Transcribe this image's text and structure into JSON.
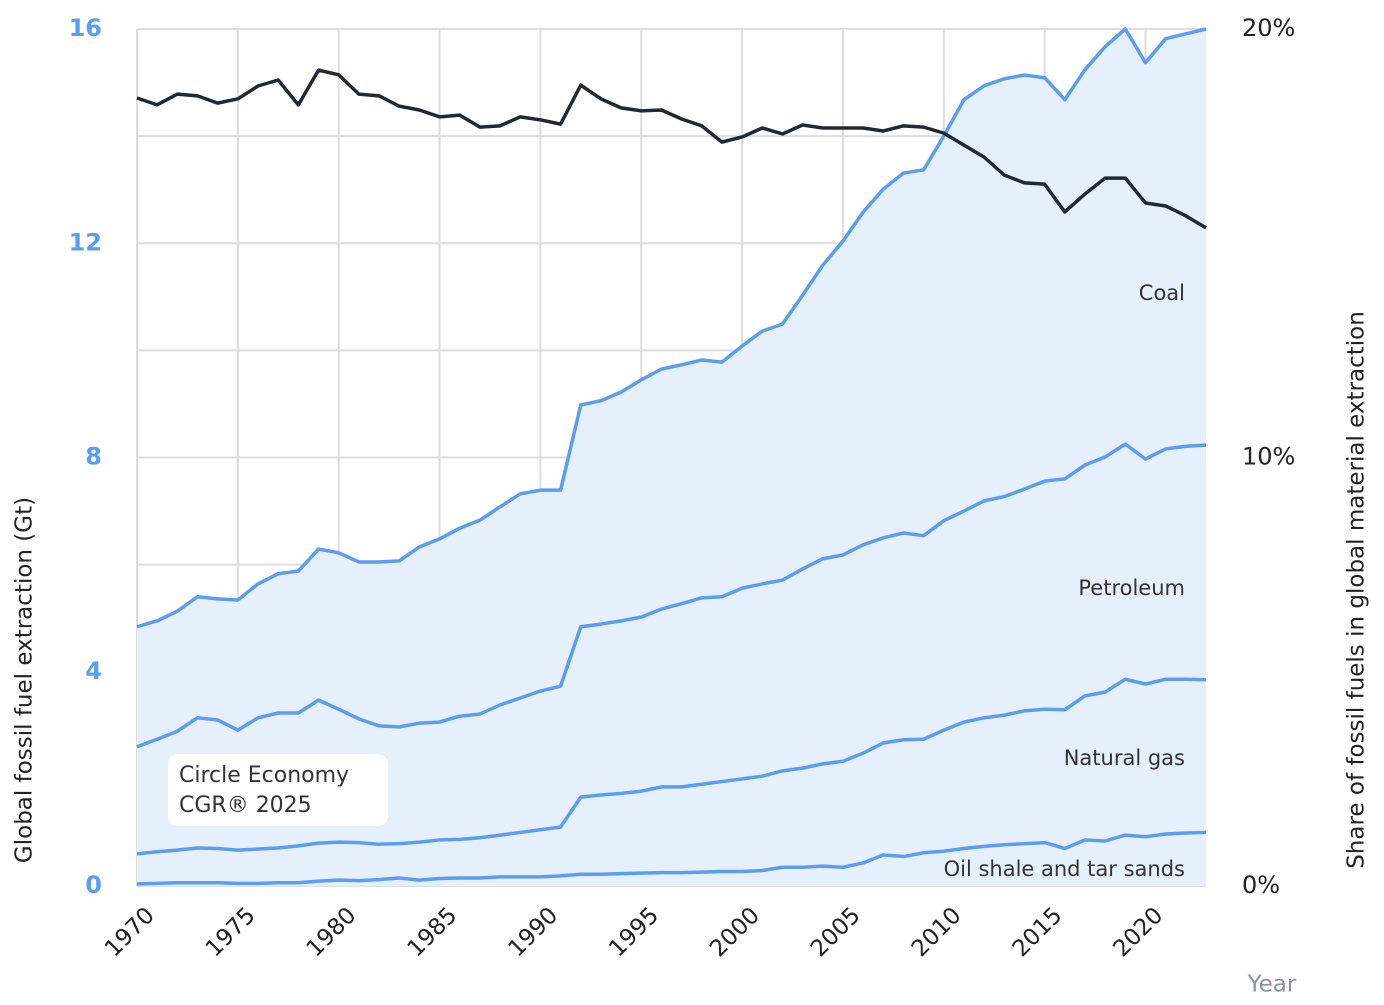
{
  "chart_data": {
    "type": "area",
    "stacked": true,
    "x": [
      1970,
      1971,
      1972,
      1973,
      1974,
      1975,
      1976,
      1977,
      1978,
      1979,
      1980,
      1981,
      1982,
      1983,
      1984,
      1985,
      1986,
      1987,
      1988,
      1989,
      1990,
      1991,
      1992,
      1993,
      1994,
      1995,
      1996,
      1997,
      1998,
      1999,
      2000,
      2001,
      2002,
      2003,
      2004,
      2005,
      2006,
      2007,
      2008,
      2009,
      2010,
      2011,
      2012,
      2013,
      2014,
      2015,
      2016,
      2017,
      2018,
      2019,
      2020,
      2021,
      2022,
      2023
    ],
    "xlim": [
      1970,
      2023
    ],
    "xticks": [
      1970,
      1975,
      1980,
      1985,
      1990,
      1995,
      2000,
      2005,
      2010,
      2015,
      2020
    ],
    "xlabel": "Year",
    "ylabel": "Global fossil fuel extraction (Gt)",
    "y2label": "Share of fossil fuels in global material extraction",
    "ylim": [
      0,
      16
    ],
    "yticks": [
      0,
      4,
      8,
      12,
      16
    ],
    "minor_yticks": [
      2,
      6,
      10,
      14
    ],
    "y2lim": [
      0,
      20
    ],
    "y2ticks": [
      {
        "value": 0,
        "label": "0%"
      },
      {
        "value": 10,
        "label": "10%"
      },
      {
        "value": 20,
        "label": "20%"
      }
    ],
    "grid": true,
    "fill_color": "#e6f0fd",
    "annotation": [
      "Circle Economy",
      "CGR® 2025"
    ],
    "series": [
      {
        "name": "Oil shale and tar sands",
        "color": "#5b9ef0",
        "values": [
          0.04,
          0.05,
          0.06,
          0.06,
          0.06,
          0.05,
          0.05,
          0.06,
          0.06,
          0.09,
          0.11,
          0.1,
          0.12,
          0.15,
          0.11,
          0.14,
          0.15,
          0.15,
          0.17,
          0.17,
          0.17,
          0.19,
          0.22,
          0.22,
          0.23,
          0.24,
          0.25,
          0.25,
          0.26,
          0.27,
          0.27,
          0.29,
          0.35,
          0.35,
          0.37,
          0.35,
          0.43,
          0.58,
          0.55,
          0.62,
          0.65,
          0.7,
          0.74,
          0.77,
          0.79,
          0.81,
          0.7,
          0.86,
          0.84,
          0.95,
          0.92,
          0.97,
          0.99,
          1.0
        ]
      },
      {
        "name": "Natural gas",
        "color": "#5b9ef0",
        "values": [
          0.56,
          0.59,
          0.61,
          0.65,
          0.64,
          0.62,
          0.64,
          0.65,
          0.69,
          0.71,
          0.71,
          0.71,
          0.66,
          0.64,
          0.71,
          0.72,
          0.72,
          0.75,
          0.78,
          0.83,
          0.88,
          0.91,
          1.44,
          1.48,
          1.5,
          1.53,
          1.6,
          1.6,
          1.64,
          1.68,
          1.73,
          1.76,
          1.8,
          1.85,
          1.91,
          1.98,
          2.05,
          2.09,
          2.18,
          2.12,
          2.26,
          2.36,
          2.4,
          2.42,
          2.48,
          2.49,
          2.59,
          2.69,
          2.78,
          2.91,
          2.85,
          2.89,
          2.87,
          2.85
        ]
      },
      {
        "name": "Petroleum",
        "color": "#5b9ef0",
        "values": [
          2.0,
          2.1,
          2.22,
          2.43,
          2.4,
          2.24,
          2.45,
          2.52,
          2.48,
          2.67,
          2.48,
          2.31,
          2.21,
          2.18,
          2.22,
          2.2,
          2.3,
          2.31,
          2.43,
          2.51,
          2.59,
          2.63,
          3.18,
          3.19,
          3.22,
          3.25,
          3.32,
          3.42,
          3.48,
          3.45,
          3.56,
          3.59,
          3.56,
          3.72,
          3.83,
          3.85,
          3.89,
          3.83,
          3.86,
          3.8,
          3.91,
          3.94,
          4.05,
          4.08,
          4.14,
          4.26,
          4.31,
          4.31,
          4.39,
          4.39,
          4.2,
          4.3,
          4.35,
          4.38
        ]
      },
      {
        "name": "Coal",
        "color": "#5b9ef0",
        "values": [
          2.24,
          2.21,
          2.24,
          2.26,
          2.26,
          2.43,
          2.5,
          2.6,
          2.65,
          2.82,
          2.92,
          2.93,
          3.06,
          3.1,
          3.29,
          3.42,
          3.51,
          3.62,
          3.7,
          3.81,
          3.75,
          3.66,
          4.14,
          4.17,
          4.27,
          4.43,
          4.48,
          4.46,
          4.44,
          4.38,
          4.52,
          4.72,
          4.78,
          5.11,
          5.48,
          5.86,
          6.21,
          6.51,
          6.72,
          6.83,
          7.18,
          7.68,
          7.75,
          7.8,
          7.73,
          7.53,
          7.08,
          7.38,
          7.66,
          7.75,
          7.4,
          7.66,
          7.7,
          7.77
        ]
      },
      {
        "axis": "y2",
        "color": "#1f2a36",
        "values": [
          18.39,
          18.23,
          18.48,
          18.44,
          18.27,
          18.37,
          18.67,
          18.81,
          18.23,
          19.04,
          18.93,
          18.48,
          18.44,
          18.2,
          18.11,
          17.95,
          17.99,
          17.71,
          17.74,
          17.95,
          17.88,
          17.78,
          18.69,
          18.37,
          18.16,
          18.09,
          18.11,
          17.9,
          17.74,
          17.36,
          17.48,
          17.69,
          17.55,
          17.76,
          17.69,
          17.69,
          17.69,
          17.62,
          17.74,
          17.71,
          17.57,
          17.29,
          17.01,
          16.59,
          16.41,
          16.38,
          15.73,
          16.15,
          16.52,
          16.52,
          15.94,
          15.87,
          15.64,
          15.36
        ]
      }
    ]
  }
}
